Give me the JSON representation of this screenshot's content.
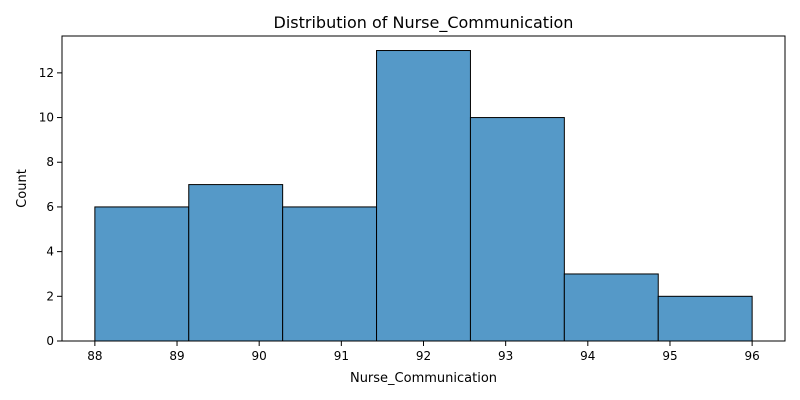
{
  "chart_data": {
    "type": "bar",
    "title": "Distribution of Nurse_Communication",
    "xlabel": "Nurse_Communication",
    "ylabel": "Count",
    "bin_edges": [
      88.0,
      89.142857,
      90.285714,
      91.428571,
      92.571429,
      93.714286,
      94.857143,
      96.0
    ],
    "values": [
      6,
      7,
      6,
      13,
      10,
      3,
      2
    ],
    "xlim": [
      87.6,
      96.4
    ],
    "ylim": [
      0,
      13.65
    ],
    "xticks": [
      88,
      89,
      90,
      91,
      92,
      93,
      94,
      95,
      96
    ],
    "yticks": [
      0,
      2,
      4,
      6,
      8,
      10,
      12
    ],
    "bar_color": "#5599c8",
    "edge_color": "#000000",
    "grid": false,
    "legend": "none"
  }
}
